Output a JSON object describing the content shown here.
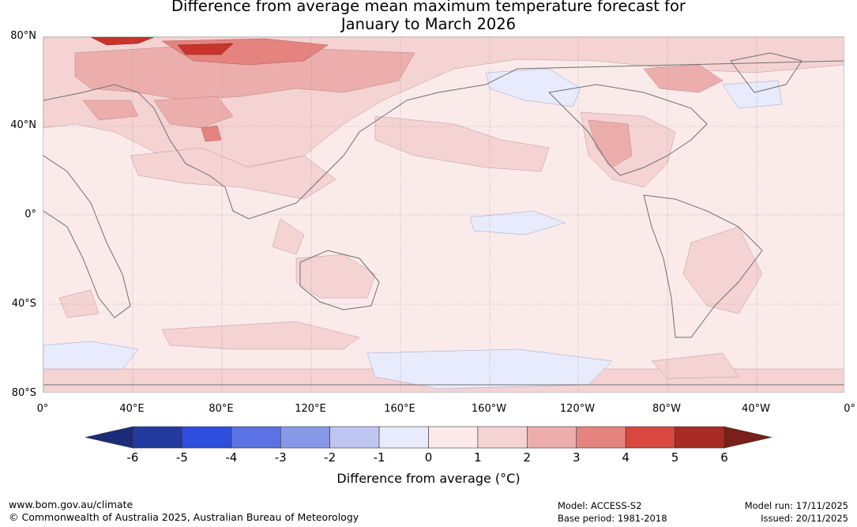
{
  "title": {
    "line1": "Difference from average mean maximum temperature forecast for",
    "line2": "January to March 2026"
  },
  "map": {
    "latitude_labels": [
      "80°N",
      "40°N",
      "0°",
      "40°S",
      "80°S"
    ],
    "longitude_labels": [
      "0°",
      "40°E",
      "80°E",
      "120°E",
      "160°E",
      "160°W",
      "120°W",
      "80°W",
      "40°W",
      "0°"
    ],
    "regions": [
      {
        "name": "arctic-russia",
        "anomaly": "3 to 5"
      },
      {
        "name": "central-asia",
        "anomaly": "2 to 4"
      },
      {
        "name": "mexico-southern-usa",
        "anomaly": "2 to 3"
      },
      {
        "name": "alaska",
        "anomaly": "-1 to 0"
      },
      {
        "name": "southern-ocean",
        "anomaly": "-1 to 0"
      },
      {
        "name": "tropical-pacific",
        "anomaly": "-1 to 0"
      }
    ]
  },
  "colorbar": {
    "ticks": [
      "-6",
      "-5",
      "-4",
      "-3",
      "-2",
      "-1",
      "0",
      "1",
      "2",
      "3",
      "4",
      "5",
      "6"
    ],
    "colors": [
      "#233b9f",
      "#2e4ee0",
      "#5a72e4",
      "#8898e8",
      "#bfc6f2",
      "#e8ebfb",
      "#fceaea",
      "#f4d3d2",
      "#ecaeac",
      "#e5837e",
      "#d9483e",
      "#a92b25"
    ],
    "low_extend_color": "#1c2b7a",
    "high_extend_color": "#7a1f1a",
    "label": "Difference from average (°C)"
  },
  "footer": {
    "website": "www.bom.gov.au/climate",
    "copyright": "© Commonwealth of Australia 2025, Australian Bureau of Meteorology",
    "model": "Model: ACCESS-S2",
    "base_period": "Base period: 1981-2018",
    "model_run": "Model run: 17/11/2025",
    "issued": "Issued: 20/11/2025"
  },
  "colors": {
    "ocean_base": "#fbeaea",
    "coast": "#707070",
    "grid": "#8a8a8a"
  }
}
